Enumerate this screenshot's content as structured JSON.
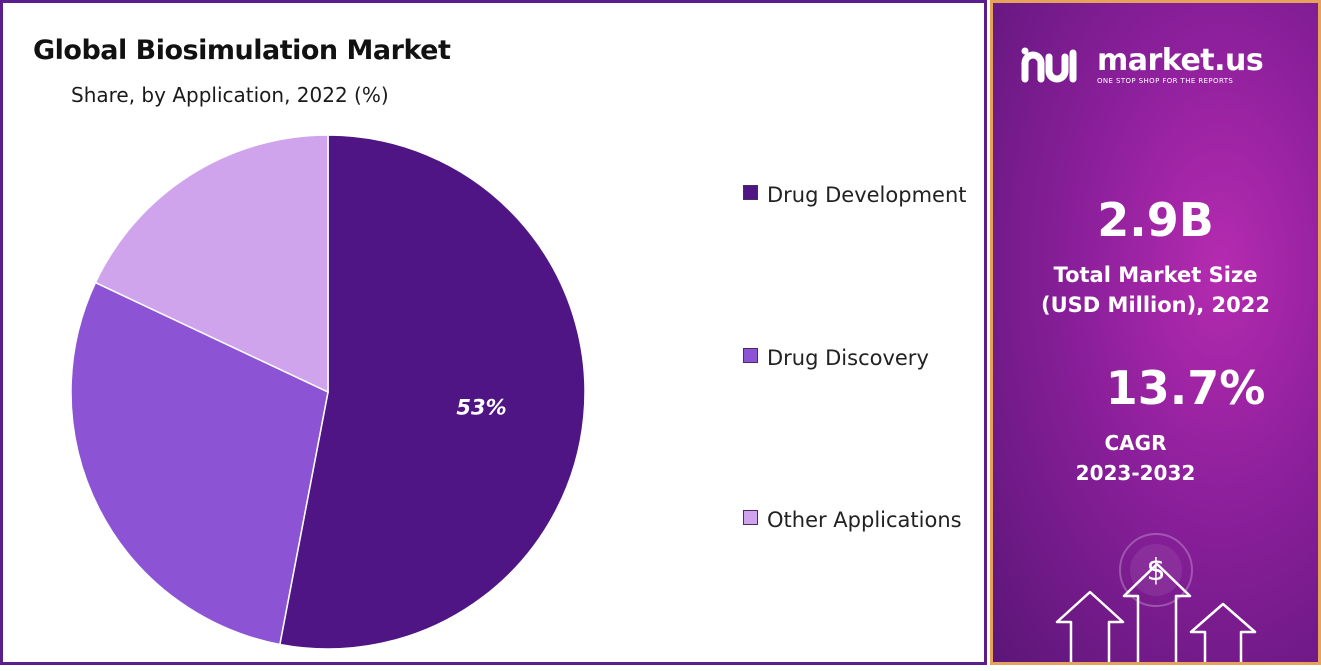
{
  "chart_data": {
    "type": "pie",
    "title": "Global Biosimulation Market",
    "subtitle": "Share, by Application, 2022 (%)",
    "categories": [
      "Drug Development",
      "Drug Discovery",
      "Other Applications"
    ],
    "values": [
      53,
      29,
      18
    ],
    "colors": [
      "#4f1584",
      "#8c54d4",
      "#d0a4ec"
    ],
    "data_labels": [
      "53%",
      "",
      ""
    ],
    "legend_position": "right",
    "legend": [
      "Drug Development",
      "Drug Discovery",
      "Other Applications"
    ]
  },
  "side_panel": {
    "logo_text": "market.us",
    "logo_tagline": "ONE STOP SHOP FOR THE REPORTS",
    "market_size_value": "2.9B",
    "market_size_label_line1": "Total Market Size",
    "market_size_label_line2": "(USD Million), 2022",
    "cagr_value": "13.7%",
    "cagr_label_line1": "CAGR",
    "cagr_label_line2": "2023-2032",
    "dollar_symbol": "$",
    "logo_icon": "market-us-logo-icon",
    "decor_icon": "growth-arrows-icon"
  }
}
